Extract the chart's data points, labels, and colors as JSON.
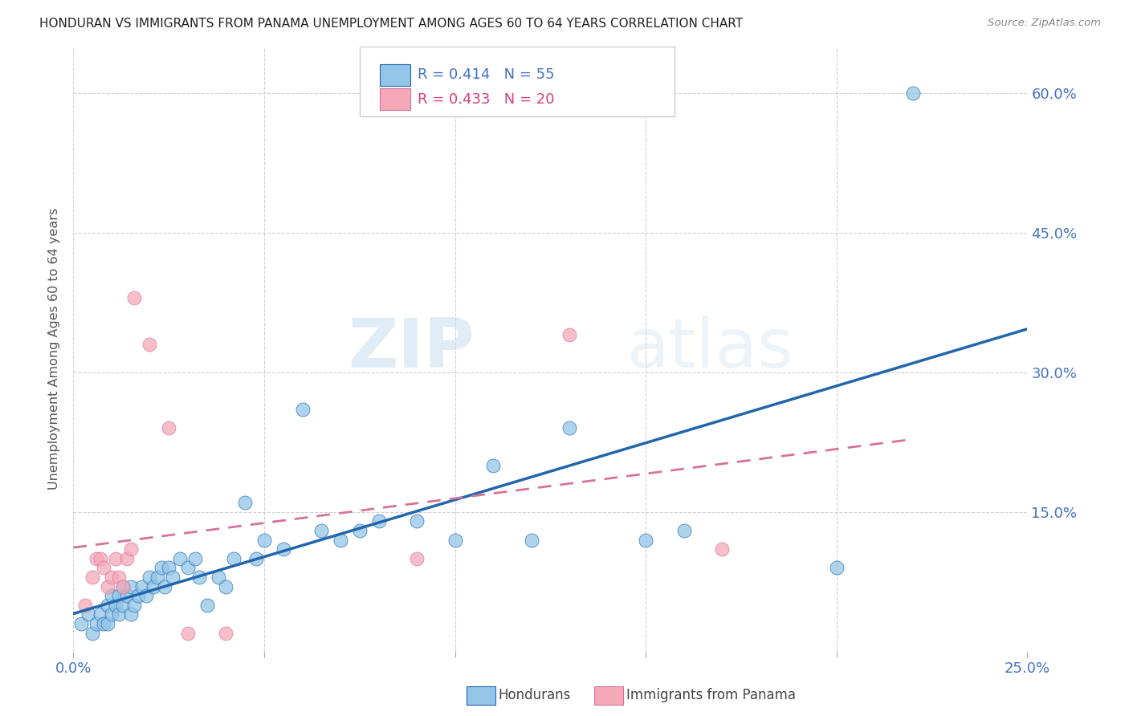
{
  "title": "HONDURAN VS IMMIGRANTS FROM PANAMA UNEMPLOYMENT AMONG AGES 60 TO 64 YEARS CORRELATION CHART",
  "source": "Source: ZipAtlas.com",
  "ylabel": "Unemployment Among Ages 60 to 64 years",
  "xlim": [
    0.0,
    0.25
  ],
  "ylim": [
    0.0,
    0.65
  ],
  "xticks": [
    0.0,
    0.05,
    0.1,
    0.15,
    0.2,
    0.25
  ],
  "yticks": [
    0.0,
    0.15,
    0.3,
    0.45,
    0.6
  ],
  "legend_blue_label": "Hondurans",
  "legend_pink_label": "Immigrants from Panama",
  "R_blue": 0.414,
  "N_blue": 55,
  "R_pink": 0.433,
  "N_pink": 20,
  "blue_color": "#92C5E8",
  "pink_color": "#F4A8B8",
  "trend_blue_color": "#2166AC",
  "trend_pink_color": "#D6729A",
  "watermark_zip": "ZIP",
  "watermark_atlas": "atlas",
  "blue_scatter_x": [
    0.002,
    0.004,
    0.005,
    0.006,
    0.007,
    0.008,
    0.009,
    0.009,
    0.01,
    0.01,
    0.011,
    0.012,
    0.012,
    0.013,
    0.013,
    0.014,
    0.015,
    0.015,
    0.016,
    0.017,
    0.018,
    0.019,
    0.02,
    0.021,
    0.022,
    0.023,
    0.024,
    0.025,
    0.026,
    0.028,
    0.03,
    0.032,
    0.033,
    0.035,
    0.038,
    0.04,
    0.042,
    0.045,
    0.048,
    0.05,
    0.055,
    0.06,
    0.065,
    0.07,
    0.075,
    0.08,
    0.09,
    0.1,
    0.11,
    0.12,
    0.13,
    0.15,
    0.16,
    0.2,
    0.22
  ],
  "blue_scatter_y": [
    0.03,
    0.04,
    0.02,
    0.03,
    0.04,
    0.03,
    0.05,
    0.03,
    0.04,
    0.06,
    0.05,
    0.04,
    0.06,
    0.05,
    0.07,
    0.06,
    0.04,
    0.07,
    0.05,
    0.06,
    0.07,
    0.06,
    0.08,
    0.07,
    0.08,
    0.09,
    0.07,
    0.09,
    0.08,
    0.1,
    0.09,
    0.1,
    0.08,
    0.05,
    0.08,
    0.07,
    0.1,
    0.16,
    0.1,
    0.12,
    0.11,
    0.26,
    0.13,
    0.12,
    0.13,
    0.14,
    0.14,
    0.12,
    0.2,
    0.12,
    0.24,
    0.12,
    0.13,
    0.09,
    0.6
  ],
  "pink_scatter_x": [
    0.003,
    0.005,
    0.006,
    0.007,
    0.008,
    0.009,
    0.01,
    0.011,
    0.012,
    0.013,
    0.014,
    0.015,
    0.016,
    0.02,
    0.025,
    0.03,
    0.04,
    0.09,
    0.13,
    0.17
  ],
  "pink_scatter_y": [
    0.05,
    0.08,
    0.1,
    0.1,
    0.09,
    0.07,
    0.08,
    0.1,
    0.08,
    0.07,
    0.1,
    0.11,
    0.38,
    0.33,
    0.24,
    0.02,
    0.02,
    0.1,
    0.34,
    0.11
  ]
}
